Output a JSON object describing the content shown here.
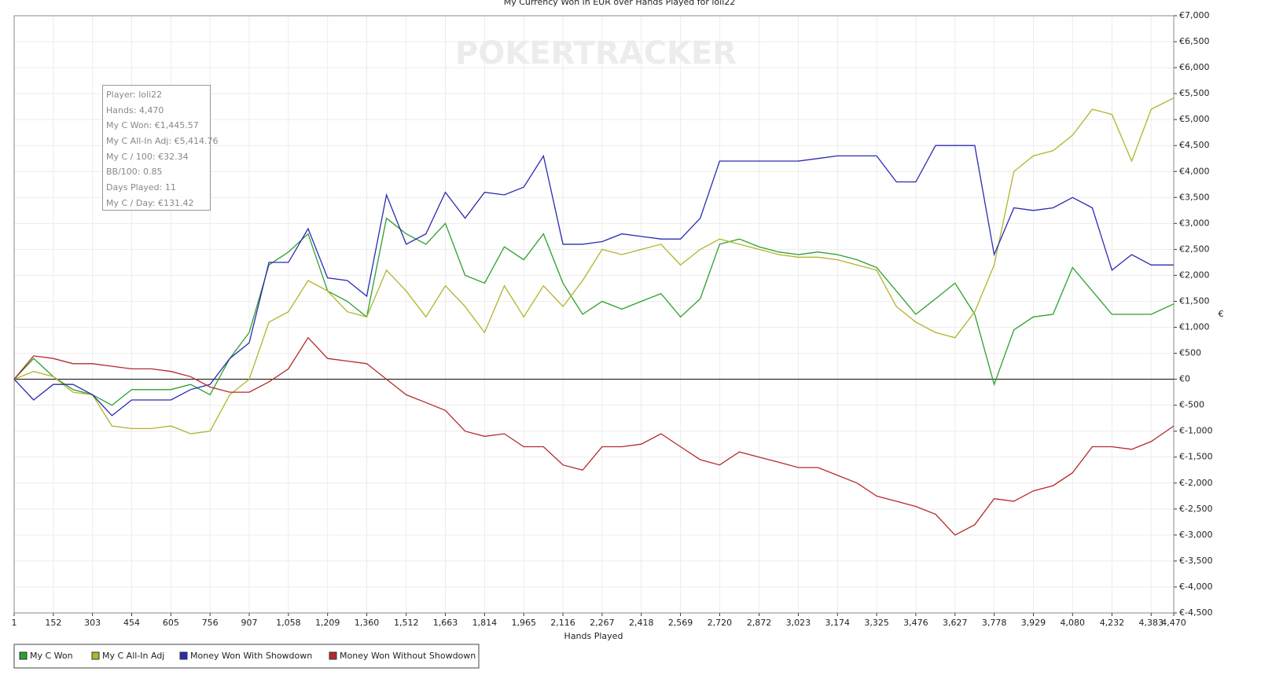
{
  "chart_data": {
    "type": "line",
    "title": "My Currency Won in EUR over Hands Played for loli22",
    "watermark": "POKERTRACKER",
    "x_label": "Hands Played",
    "y_label": "€",
    "info_box": [
      "Player: loli22",
      "Hands: 4,470",
      "My C Won: €1,445.57",
      "My C All-In Adj: €5,414.76",
      "My C / 100: €32.34",
      "BB/100: 0.85",
      "Days Played: 11",
      "My C / Day: €131.42"
    ],
    "x": [
      1,
      76,
      152,
      228,
      303,
      378,
      454,
      530,
      605,
      681,
      756,
      832,
      907,
      983,
      1058,
      1134,
      1209,
      1285,
      1360,
      1436,
      1512,
      1588,
      1663,
      1739,
      1814,
      1890,
      1965,
      2041,
      2116,
      2192,
      2267,
      2343,
      2418,
      2494,
      2569,
      2645,
      2720,
      2796,
      2872,
      2948,
      3023,
      3099,
      3174,
      3250,
      3325,
      3401,
      3476,
      3552,
      3627,
      3703,
      3778,
      3854,
      3929,
      4005,
      4080,
      4156,
      4232,
      4308,
      4383,
      4470
    ],
    "series": [
      {
        "name": "My C Won",
        "color": "#2ca02c",
        "values": [
          0,
          400,
          50,
          -200,
          -300,
          -500,
          -200,
          -200,
          -200,
          -100,
          -300,
          400,
          900,
          2200,
          2450,
          2800,
          1700,
          1500,
          1200,
          3100,
          2800,
          2600,
          3000,
          2000,
          1850,
          2550,
          2300,
          2800,
          1850,
          1250,
          1500,
          1350,
          1500,
          1650,
          1200,
          1550,
          2600,
          2700,
          2550,
          2450,
          2400,
          2450,
          2400,
          2300,
          2150,
          1700,
          1250,
          1550,
          1850,
          1250,
          -100,
          950,
          1200,
          1250,
          2150,
          1700,
          1250,
          1250,
          1250,
          1450
        ]
      },
      {
        "name": "My C All-In Adj",
        "color": "#b3b32a",
        "values": [
          0,
          150,
          50,
          -250,
          -300,
          -900,
          -950,
          -950,
          -900,
          -1050,
          -1000,
          -300,
          0,
          1100,
          1300,
          1900,
          1700,
          1300,
          1200,
          2100,
          1700,
          1200,
          1800,
          1400,
          900,
          1800,
          1200,
          1800,
          1400,
          1900,
          2500,
          2400,
          2500,
          2600,
          2200,
          2500,
          2700,
          2600,
          2500,
          2400,
          2350,
          2350,
          2300,
          2200,
          2100,
          1400,
          1100,
          900,
          800,
          1300,
          2200,
          4000,
          4300,
          4400,
          4700,
          5200,
          5100,
          4200,
          5200,
          5415
        ]
      },
      {
        "name": "Money Won With Showdown",
        "color": "#2a2ab5",
        "values": [
          0,
          -400,
          -100,
          -100,
          -300,
          -700,
          -400,
          -400,
          -400,
          -200,
          -100,
          400,
          700,
          2250,
          2250,
          2900,
          1950,
          1900,
          1600,
          3550,
          2600,
          2800,
          3600,
          3100,
          3600,
          3550,
          3700,
          4300,
          2600,
          2600,
          2650,
          2800,
          2750,
          2700,
          2700,
          3100,
          4200,
          4200,
          4200,
          4200,
          4200,
          4250,
          4300,
          4300,
          4300,
          3800,
          3800,
          4500,
          4500,
          4500,
          2400,
          3300,
          3250,
          3300,
          3500,
          3300,
          2100,
          2400,
          2200,
          2200
        ]
      },
      {
        "name": "Money Won Without Showdown",
        "color": "#b52a2a",
        "values": [
          0,
          450,
          400,
          300,
          300,
          250,
          200,
          200,
          150,
          50,
          -150,
          -250,
          -250,
          -50,
          200,
          800,
          400,
          350,
          300,
          0,
          -300,
          -450,
          -600,
          -1000,
          -1100,
          -1050,
          -1300,
          -1300,
          -1650,
          -1750,
          -1300,
          -1300,
          -1250,
          -1050,
          -1300,
          -1550,
          -1650,
          -1400,
          -1500,
          -1600,
          -1700,
          -1700,
          -1850,
          -2000,
          -2250,
          -2350,
          -2450,
          -2600,
          -3000,
          -2800,
          -2300,
          -2350,
          -2150,
          -2050,
          -1800,
          -1300,
          -1300,
          -1350,
          -1200,
          -900
        ]
      }
    ],
    "xlim": [
      1,
      4470
    ],
    "xticks": [
      1,
      152,
      303,
      454,
      605,
      756,
      907,
      {
        "value": 1058,
        "label": "1,058"
      },
      {
        "value": 1209,
        "label": "1,209"
      },
      {
        "value": 1360,
        "label": "1,360"
      },
      {
        "value": 1512,
        "label": "1,512"
      },
      {
        "value": 1663,
        "label": "1,663"
      },
      {
        "value": 1814,
        "label": "1,814"
      },
      {
        "value": 1965,
        "label": "1,965"
      },
      {
        "value": 2116,
        "label": "2,116"
      },
      {
        "value": 2267,
        "label": "2,267"
      },
      {
        "value": 2418,
        "label": "2,418"
      },
      {
        "value": 2569,
        "label": "2,569"
      },
      {
        "value": 2720,
        "label": "2,720"
      },
      {
        "value": 2872,
        "label": "2,872"
      },
      {
        "value": 3023,
        "label": "3,023"
      },
      {
        "value": 3174,
        "label": "3,174"
      },
      {
        "value": 3325,
        "label": "3,325"
      },
      {
        "value": 3476,
        "label": "3,476"
      },
      {
        "value": 3627,
        "label": "3,627"
      },
      {
        "value": 3778,
        "label": "3,778"
      },
      {
        "value": 3929,
        "label": "3,929"
      },
      {
        "value": 4080,
        "label": "4,080"
      },
      {
        "value": 4232,
        "label": "4,232"
      },
      {
        "value": 4383,
        "label": "4,383"
      },
      {
        "value": 4470,
        "label": "4,470"
      }
    ],
    "ylim": [
      -4500,
      7000
    ],
    "yticks": [
      {
        "value": -4500,
        "label": "€-4,500"
      },
      {
        "value": -4000,
        "label": "€-4,000"
      },
      {
        "value": -3500,
        "label": "€-3,500"
      },
      {
        "value": -3000,
        "label": "€-3,000"
      },
      {
        "value": -2500,
        "label": "€-2,500"
      },
      {
        "value": -2000,
        "label": "€-2,000"
      },
      {
        "value": -1500,
        "label": "€-1,500"
      },
      {
        "value": -1000,
        "label": "€-1,000"
      },
      {
        "value": -500,
        "label": "€-500"
      },
      {
        "value": 0,
        "label": "€0"
      },
      {
        "value": 500,
        "label": "€500"
      },
      {
        "value": 1000,
        "label": "€1,000"
      },
      {
        "value": 1500,
        "label": "€1,500"
      },
      {
        "value": 2000,
        "label": "€2,000"
      },
      {
        "value": 2500,
        "label": "€2,500"
      },
      {
        "value": 3000,
        "label": "€3,000"
      },
      {
        "value": 3500,
        "label": "€3,500"
      },
      {
        "value": 4000,
        "label": "€4,000"
      },
      {
        "value": 4500,
        "label": "€4,500"
      },
      {
        "value": 5000,
        "label": "€5,000"
      },
      {
        "value": 5500,
        "label": "€5,500"
      },
      {
        "value": 6000,
        "label": "€6,000"
      },
      {
        "value": 6500,
        "label": "€6,500"
      },
      {
        "value": 7000,
        "label": "€7,000"
      }
    ],
    "grid": true,
    "legend": "bottom-left"
  }
}
